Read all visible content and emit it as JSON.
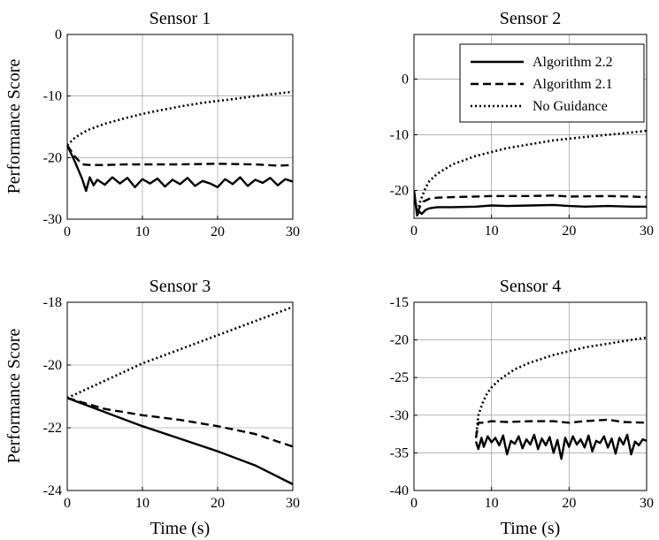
{
  "chart_data": [
    {
      "type": "line",
      "title": "Sensor 1",
      "xlabel": "",
      "ylabel": "Performance Score",
      "xlim": [
        0,
        30
      ],
      "ylim": [
        -30,
        0
      ],
      "xticks": [
        "0",
        "10",
        "20",
        "30"
      ],
      "yticks": [
        "-30",
        "-20",
        "-10",
        "0"
      ],
      "grid": true,
      "legend": false,
      "series": [
        {
          "style": "solid",
          "x": [
            0,
            1,
            2,
            2.5,
            3,
            3.5,
            4,
            5,
            6,
            7,
            8,
            9,
            10,
            11,
            12,
            13,
            14,
            15,
            16,
            17,
            18,
            19,
            20,
            21,
            22,
            23,
            24,
            25,
            26,
            27,
            28,
            29,
            30
          ],
          "y": [
            -18,
            -20.6,
            -23.5,
            -25.4,
            -23.2,
            -24.5,
            -23.6,
            -24.4,
            -23.2,
            -24.2,
            -23.3,
            -24.8,
            -23.5,
            -24.2,
            -23.4,
            -24.7,
            -23.6,
            -24.3,
            -23.3,
            -24.6,
            -23.8,
            -24.2,
            -24.8,
            -23.5,
            -24.3,
            -23.2,
            -24.6,
            -23.6,
            -24.1,
            -23.3,
            -24.5,
            -23.5,
            -23.9
          ]
        },
        {
          "style": "dashed",
          "x": [
            0,
            1,
            2,
            3,
            5,
            8,
            10,
            15,
            20,
            25,
            28,
            30
          ],
          "y": [
            -18,
            -19.8,
            -21.1,
            -21.2,
            -21.2,
            -21.1,
            -21.1,
            -21.1,
            -21.0,
            -21.1,
            -21.3,
            -21.2
          ]
        },
        {
          "style": "dotted",
          "x": [
            0,
            1,
            2,
            3,
            5,
            8,
            10,
            12,
            15,
            18,
            20,
            22,
            25,
            28,
            30
          ],
          "y": [
            -18,
            -16.8,
            -16.0,
            -15.4,
            -14.5,
            -13.5,
            -12.9,
            -12.4,
            -11.7,
            -11.1,
            -10.8,
            -10.5,
            -10.0,
            -9.6,
            -9.3
          ]
        }
      ]
    },
    {
      "type": "line",
      "title": "Sensor 2",
      "xlabel": "",
      "ylabel": "",
      "xlim": [
        0,
        30
      ],
      "ylim": [
        -25,
        8
      ],
      "xticks": [
        "0",
        "10",
        "20",
        "30"
      ],
      "yticks": [
        "-20",
        "-10",
        "0"
      ],
      "grid": true,
      "legend": true,
      "legend_position": "top-right",
      "series": [
        {
          "name": "Algorithm 2.2",
          "style": "solid",
          "x": [
            0,
            0.4,
            0.7,
            1,
            1.5,
            2,
            3,
            5,
            8,
            10,
            12,
            15,
            18,
            20,
            22,
            25,
            28,
            30
          ],
          "y": [
            -20,
            -24.5,
            -23.8,
            -24.2,
            -23.5,
            -23.2,
            -23.0,
            -23.0,
            -22.9,
            -22.7,
            -22.8,
            -22.7,
            -22.6,
            -22.8,
            -22.9,
            -22.8,
            -22.9,
            -22.9
          ]
        },
        {
          "name": "Algorithm 2.1",
          "style": "dashed",
          "x": [
            0,
            0.4,
            0.8,
            1.2,
            2,
            3,
            5,
            8,
            10,
            15,
            18,
            20,
            25,
            28,
            30
          ],
          "y": [
            -20,
            -24.2,
            -22.8,
            -22.0,
            -21.5,
            -21.3,
            -21.2,
            -21.1,
            -21.0,
            -21.0,
            -20.9,
            -21.1,
            -21.0,
            -21.1,
            -21.2
          ]
        },
        {
          "name": "No Guidance",
          "style": "dotted",
          "x": [
            0,
            0.4,
            0.8,
            1.5,
            2,
            3,
            5,
            8,
            10,
            12,
            15,
            18,
            20,
            22,
            25,
            28,
            30
          ],
          "y": [
            -20,
            -24.2,
            -22.0,
            -19.5,
            -18.3,
            -17.0,
            -15.3,
            -13.8,
            -13.1,
            -12.4,
            -11.7,
            -11.0,
            -10.7,
            -10.4,
            -10.0,
            -9.6,
            -9.3
          ]
        }
      ]
    },
    {
      "type": "line",
      "title": "Sensor 3",
      "xlabel": "Time (s)",
      "ylabel": "Performance Score",
      "xlim": [
        0,
        30
      ],
      "ylim": [
        -24,
        -18
      ],
      "xticks": [
        "0",
        "10",
        "20",
        "30"
      ],
      "yticks": [
        "-24",
        "-22",
        "-20",
        "-18"
      ],
      "grid": true,
      "legend": false,
      "series": [
        {
          "style": "solid",
          "x": [
            0,
            5,
            10,
            15,
            20,
            25,
            30
          ],
          "y": [
            -21.05,
            -21.5,
            -21.95,
            -22.35,
            -22.75,
            -23.2,
            -23.8
          ]
        },
        {
          "style": "dashed",
          "x": [
            0,
            5,
            10,
            15,
            20,
            25,
            30
          ],
          "y": [
            -21.05,
            -21.4,
            -21.6,
            -21.75,
            -21.95,
            -22.2,
            -22.6
          ]
        },
        {
          "style": "dotted",
          "x": [
            0,
            5,
            10,
            15,
            20,
            25,
            30
          ],
          "y": [
            -21.05,
            -20.5,
            -19.95,
            -19.5,
            -19.05,
            -18.6,
            -18.15
          ]
        }
      ]
    },
    {
      "type": "line",
      "title": "Sensor 4",
      "xlabel": "Time (s)",
      "ylabel": "",
      "xlim": [
        0,
        30
      ],
      "ylim": [
        -40,
        -15
      ],
      "xticks": [
        "0",
        "10",
        "20",
        "30"
      ],
      "yticks": [
        "-40",
        "-35",
        "-30",
        "-25",
        "-20",
        "-15"
      ],
      "grid": true,
      "legend": false,
      "series": [
        {
          "style": "solid",
          "x": [
            8,
            8.3,
            8.7,
            9,
            9.5,
            10,
            10.5,
            11,
            11.5,
            12,
            12.5,
            13,
            13.5,
            14,
            14.5,
            15,
            15.5,
            16,
            16.5,
            17,
            17.5,
            18,
            18.5,
            19,
            19.5,
            20,
            20.5,
            21,
            21.5,
            22,
            22.5,
            23,
            23.5,
            24,
            24.5,
            25,
            25.5,
            26,
            26.5,
            27,
            27.5,
            28,
            28.5,
            29,
            29.5,
            30
          ],
          "y": [
            -33.5,
            -34.5,
            -33.0,
            -34.2,
            -32.8,
            -33.6,
            -33.0,
            -34.0,
            -32.7,
            -35.2,
            -33.4,
            -33.8,
            -32.8,
            -34.4,
            -33.2,
            -33.9,
            -32.6,
            -34.5,
            -33.1,
            -34.0,
            -32.9,
            -35.0,
            -33.3,
            -35.8,
            -33.0,
            -34.2,
            -32.8,
            -33.9,
            -33.2,
            -34.3,
            -32.7,
            -34.8,
            -33.4,
            -33.7,
            -32.8,
            -34.3,
            -33.1,
            -35.1,
            -33.0,
            -33.9,
            -32.6,
            -35.2,
            -33.5,
            -34.0,
            -33.2,
            -33.4
          ]
        },
        {
          "style": "dashed",
          "x": [
            8,
            8.3,
            9,
            10,
            12,
            15,
            18,
            20,
            22,
            25,
            27,
            30
          ],
          "y": [
            -33.0,
            -31.0,
            -31.0,
            -30.8,
            -30.9,
            -30.8,
            -30.8,
            -31.0,
            -30.8,
            -30.6,
            -30.9,
            -31.0
          ]
        },
        {
          "style": "dotted",
          "x": [
            8,
            8.3,
            8.7,
            9,
            9.5,
            10,
            11,
            12,
            13,
            15,
            18,
            20,
            22,
            25,
            28,
            30
          ],
          "y": [
            -33.0,
            -30.0,
            -28.8,
            -28.0,
            -27.0,
            -26.3,
            -25.3,
            -24.6,
            -23.9,
            -23.0,
            -22.0,
            -21.5,
            -21.0,
            -20.5,
            -20.0,
            -19.7
          ]
        }
      ]
    }
  ]
}
